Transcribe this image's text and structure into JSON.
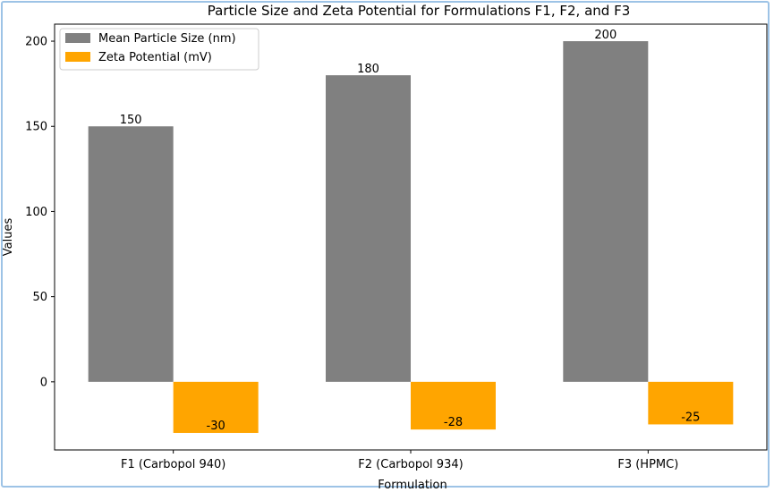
{
  "chart_data": {
    "type": "bar",
    "title": "Particle Size and Zeta Potential for Formulations F1, F2, and F3",
    "xlabel": "Formulation",
    "ylabel": "Values",
    "categories": [
      "F1 (Carbopol 940)",
      "F2 (Carbopol 934)",
      "F3 (HPMC)"
    ],
    "series": [
      {
        "name": "Mean Particle Size (nm)",
        "values": [
          150,
          180,
          200
        ],
        "color": "#808080"
      },
      {
        "name": "Zeta Potential (mV)",
        "values": [
          -30,
          -28,
          -25
        ],
        "color": "#ffa500"
      }
    ],
    "ylim": [
      -40,
      210
    ],
    "yticks": [
      0,
      50,
      100,
      150,
      200
    ],
    "grid": false,
    "legend_position": "top-left"
  }
}
